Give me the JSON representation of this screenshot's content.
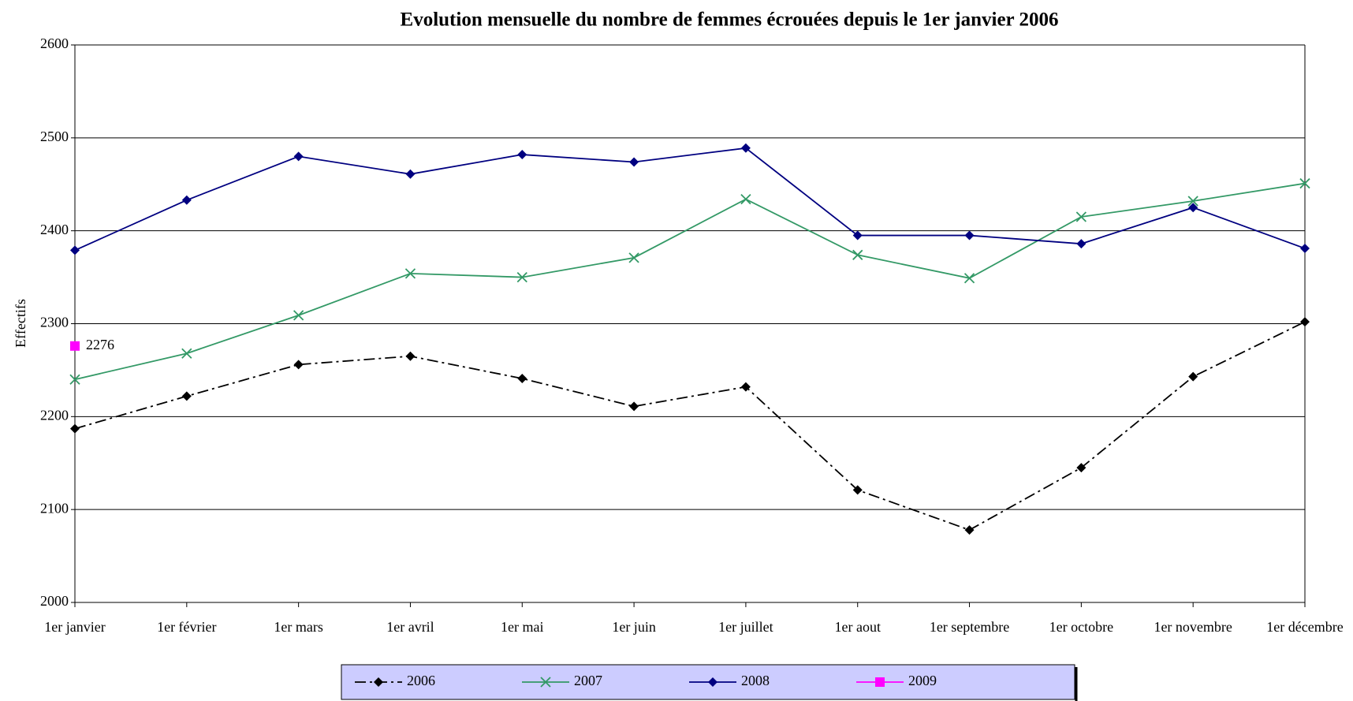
{
  "chart_data": {
    "type": "line",
    "title": "Evolution mensuelle du nombre de femmes écrouées depuis le 1er janvier 2006",
    "y_label": "Effectifs",
    "categories": [
      "1er janvier",
      "1er février",
      "1er mars",
      "1er avril",
      "1er mai",
      "1er juin",
      "1er juillet",
      "1er aout",
      "1er septembre",
      "1er octobre",
      "1er novembre",
      "1er décembre"
    ],
    "ylim": [
      2000,
      2600
    ],
    "yticks": [
      2000,
      2100,
      2200,
      2300,
      2400,
      2500,
      2600
    ],
    "grid": true,
    "legend": "bottom",
    "series": [
      {
        "name": "2006",
        "color": "#000000",
        "line_style": "dashdot",
        "marker": "diamond",
        "values": [
          2187,
          2222,
          2256,
          2265,
          2241,
          2211,
          2232,
          2121,
          2078,
          2145,
          2243,
          2302
        ]
      },
      {
        "name": "2007",
        "color": "#339966",
        "line_style": "solid",
        "marker": "x",
        "values": [
          2240,
          2268,
          2309,
          2354,
          2350,
          2371,
          2434,
          2374,
          2349,
          2415,
          2432,
          2451
        ]
      },
      {
        "name": "2008",
        "color": "#000080",
        "line_style": "solid",
        "marker": "diamond",
        "values": [
          2379,
          2433,
          2480,
          2461,
          2482,
          2474,
          2489,
          2395,
          2395,
          2386,
          2425,
          2381
        ]
      },
      {
        "name": "2009",
        "color": "#ff00ff",
        "line_style": "solid",
        "marker": "square",
        "show_value_labels": true,
        "values": [
          2276,
          null,
          null,
          null,
          null,
          null,
          null,
          null,
          null,
          null,
          null,
          null
        ]
      }
    ]
  }
}
